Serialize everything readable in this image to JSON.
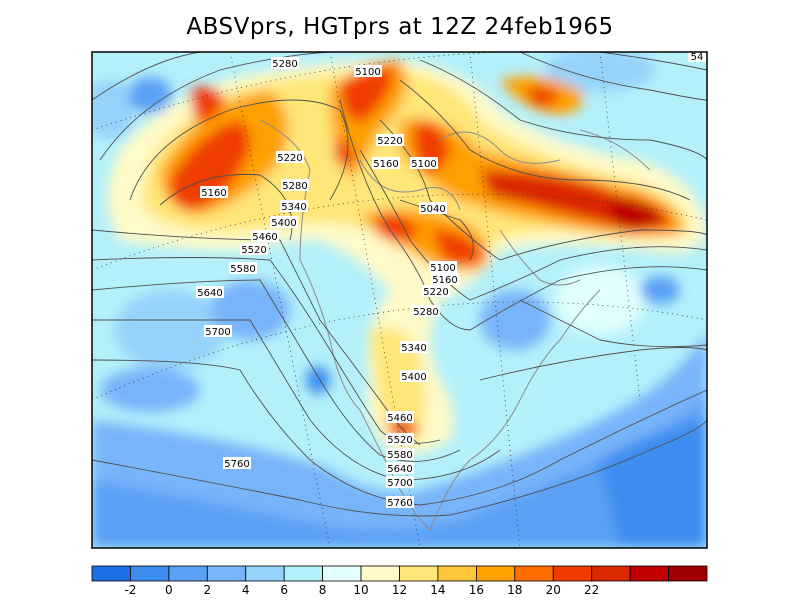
{
  "title": "ABSVprs, HGTprs at 12Z  24feb1965",
  "colors": {
    "fill_scale": [
      "#1e6ee6",
      "#3c8cf0",
      "#5aa0f5",
      "#78b4fa",
      "#96d2fa",
      "#b4f0fa",
      "#e1ffff",
      "#fffac8",
      "#ffe678",
      "#ffc83c",
      "#ffa000",
      "#ff6e00",
      "#f03c00",
      "#dc2800",
      "#c00000",
      "#a00000"
    ]
  },
  "colorbar": {
    "tick_labels": [
      "-2",
      "0",
      "2",
      "4",
      "6",
      "8",
      "10",
      "12",
      "14",
      "16",
      "18",
      "20",
      "22"
    ]
  },
  "contour_labels": [
    "5280",
    "5100",
    "5220",
    "5160",
    "5100",
    "5220",
    "5280",
    "5160",
    "5340",
    "5400",
    "5460",
    "5520",
    "5580",
    "5040",
    "5640",
    "5700",
    "5100",
    "5160",
    "5220",
    "5280",
    "5340",
    "5400",
    "5460",
    "5520",
    "5580",
    "5640",
    "5700",
    "5760",
    "5760",
    "54"
  ]
}
